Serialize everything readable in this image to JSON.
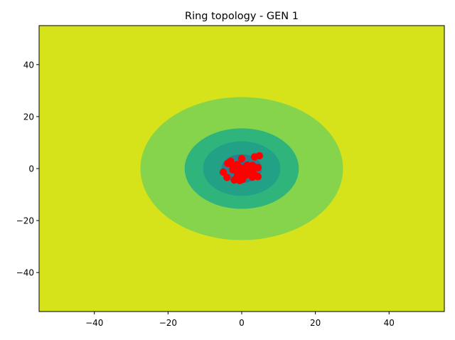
{
  "chart_data": {
    "type": "scatter",
    "subtype": "filled-contour-with-scatter-overlay",
    "title": "Ring topology - GEN 1",
    "xlabel": "",
    "ylabel": "",
    "xlim": [
      -55,
      55
    ],
    "ylim": [
      -55,
      55
    ],
    "x_ticks": [
      -40,
      -20,
      0,
      20,
      40
    ],
    "y_ticks": [
      -40,
      -20,
      0,
      20,
      40
    ],
    "x_tick_labels": [
      "−40",
      "−20",
      "0",
      "20",
      "40"
    ],
    "y_tick_labels": [
      "−40",
      "−20",
      "0",
      "20",
      "40"
    ],
    "grid": false,
    "legend": "none",
    "contour_levels": [
      {
        "radius": 55,
        "color": "#d6e31a"
      },
      {
        "radius": 27.5,
        "color": "#86d44c"
      },
      {
        "radius": 15.5,
        "color": "#2fb47c"
      },
      {
        "radius": 10.5,
        "color": "#23a187"
      },
      {
        "radius": 5.5,
        "color": "#2a7f8e"
      },
      {
        "radius": 2.5,
        "color": "#31688e"
      }
    ],
    "scatter_color": "#ff0000",
    "points": [
      {
        "x": 3.5,
        "y": 4.5
      },
      {
        "x": 4.8,
        "y": 4.9
      },
      {
        "x": 0.0,
        "y": 3.8
      },
      {
        "x": -3.8,
        "y": 2.0
      },
      {
        "x": -3.0,
        "y": 2.8
      },
      {
        "x": -2.6,
        "y": 1.2
      },
      {
        "x": -1.2,
        "y": 1.6
      },
      {
        "x": 1.5,
        "y": 1.3
      },
      {
        "x": 2.9,
        "y": 1.2
      },
      {
        "x": 3.4,
        "y": 0.6
      },
      {
        "x": 4.4,
        "y": 0.4
      },
      {
        "x": -0.3,
        "y": 0.3
      },
      {
        "x": 0.6,
        "y": -0.4
      },
      {
        "x": 1.3,
        "y": -0.1
      },
      {
        "x": 3.0,
        "y": -0.5
      },
      {
        "x": 2.2,
        "y": -1.2
      },
      {
        "x": -2.4,
        "y": -0.5
      },
      {
        "x": -1.2,
        "y": -1.2
      },
      {
        "x": 0.2,
        "y": -1.6
      },
      {
        "x": -5.0,
        "y": -1.4
      },
      {
        "x": -4.0,
        "y": -3.4
      },
      {
        "x": -2.0,
        "y": -4.4
      },
      {
        "x": -0.5,
        "y": -4.6
      },
      {
        "x": 0.2,
        "y": -4.2
      },
      {
        "x": 2.9,
        "y": -3.3
      },
      {
        "x": 3.7,
        "y": -2.6
      },
      {
        "x": 4.4,
        "y": -3.1
      },
      {
        "x": 1.3,
        "y": -2.4
      },
      {
        "x": 2.6,
        "y": -2.0
      },
      {
        "x": -1.2,
        "y": -2.8
      }
    ]
  }
}
